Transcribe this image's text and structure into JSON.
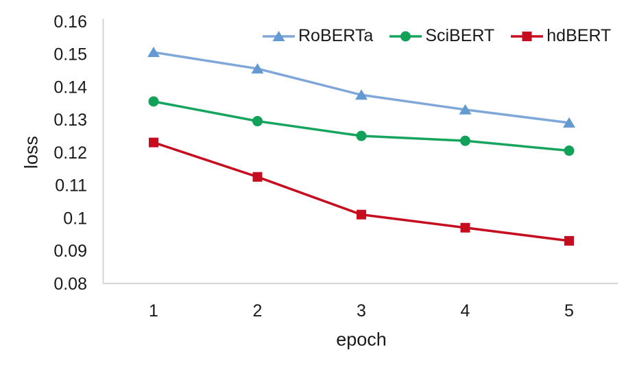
{
  "chart_data": {
    "type": "line",
    "title": "",
    "xlabel": "epoch",
    "ylabel": "loss",
    "x": [
      1,
      2,
      3,
      4,
      5
    ],
    "x_tick_labels": [
      "1",
      "2",
      "3",
      "4",
      "5"
    ],
    "y_ticks": [
      0.08,
      0.09,
      0.1,
      0.11,
      0.12,
      0.13,
      0.14,
      0.15,
      0.16
    ],
    "y_tick_labels": [
      "0.08",
      "0.09",
      "0.1",
      "0.11",
      "0.12",
      "0.13",
      "0.14",
      "0.15",
      "0.16"
    ],
    "ylim": [
      0.08,
      0.16
    ],
    "grid": false,
    "legend_position": "top-inside",
    "background_color": "#ffffff",
    "axis_color": "#d6d6d6",
    "text_color": "#1a1a1a",
    "series": [
      {
        "name": "RoBERTa",
        "marker": "triangle",
        "line_color": "#7fa7da",
        "marker_color": "#639ad2",
        "values": [
          0.1505,
          0.1455,
          0.1375,
          0.133,
          0.129
        ]
      },
      {
        "name": "SciBERT",
        "marker": "circle",
        "line_color": "#17a45e",
        "marker_color": "#12a158",
        "values": [
          0.1355,
          0.1295,
          0.125,
          0.1235,
          0.1205
        ]
      },
      {
        "name": "hdBERT",
        "marker": "square",
        "line_color": "#c60d20",
        "marker_color": "#c60d20",
        "values": [
          0.123,
          0.1125,
          0.101,
          0.097,
          0.093
        ]
      }
    ]
  }
}
